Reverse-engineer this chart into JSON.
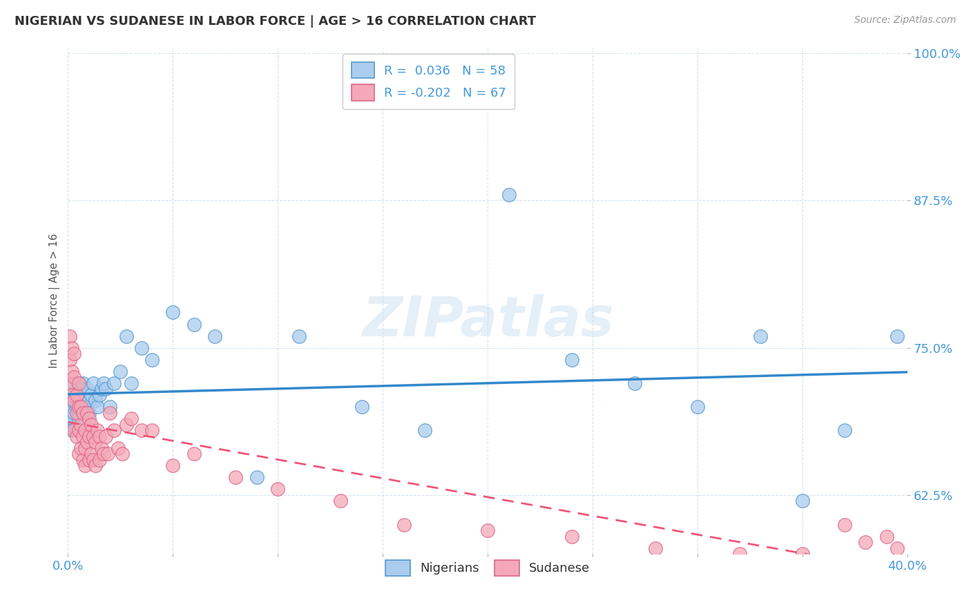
{
  "title": "NIGERIAN VS SUDANESE IN LABOR FORCE | AGE > 16 CORRELATION CHART",
  "source": "Source: ZipAtlas.com",
  "ylabel": "In Labor Force | Age > 16",
  "xlim": [
    0.0,
    0.4
  ],
  "ylim": [
    0.575,
    1.005
  ],
  "xticks": [
    0.0,
    0.05,
    0.1,
    0.15,
    0.2,
    0.25,
    0.3,
    0.35,
    0.4
  ],
  "xticklabels": [
    "0.0%",
    "",
    "",
    "",
    "",
    "",
    "",
    "",
    "40.0%"
  ],
  "yticks": [
    0.625,
    0.75,
    0.875,
    1.0
  ],
  "yticklabels": [
    "62.5%",
    "75.0%",
    "87.5%",
    "100.0%"
  ],
  "nigerian_R": 0.036,
  "nigerian_N": 58,
  "sudanese_R": -0.202,
  "sudanese_N": 67,
  "nigerian_color": "#aaccee",
  "sudanese_color": "#f4a8b8",
  "nigerian_edge_color": "#5599cc",
  "sudanese_edge_color": "#dd6688",
  "nigerian_line_color": "#3388cc",
  "sudanese_line_color": "#ee5577",
  "watermark": "ZIPatlas",
  "background_color": "#ffffff",
  "nigerian_scatter_x": [
    0.001,
    0.001,
    0.002,
    0.002,
    0.002,
    0.003,
    0.003,
    0.003,
    0.004,
    0.004,
    0.004,
    0.005,
    0.005,
    0.005,
    0.005,
    0.006,
    0.006,
    0.006,
    0.007,
    0.007,
    0.007,
    0.008,
    0.008,
    0.008,
    0.009,
    0.009,
    0.01,
    0.01,
    0.011,
    0.012,
    0.013,
    0.014,
    0.015,
    0.016,
    0.017,
    0.018,
    0.02,
    0.022,
    0.025,
    0.028,
    0.03,
    0.035,
    0.04,
    0.05,
    0.06,
    0.07,
    0.09,
    0.11,
    0.14,
    0.17,
    0.21,
    0.24,
    0.27,
    0.3,
    0.33,
    0.35,
    0.37,
    0.395
  ],
  "nigerian_scatter_y": [
    0.685,
    0.7,
    0.69,
    0.705,
    0.68,
    0.695,
    0.71,
    0.72,
    0.7,
    0.715,
    0.68,
    0.695,
    0.705,
    0.72,
    0.69,
    0.68,
    0.7,
    0.715,
    0.705,
    0.695,
    0.72,
    0.7,
    0.71,
    0.69,
    0.715,
    0.7,
    0.705,
    0.695,
    0.71,
    0.72,
    0.705,
    0.7,
    0.71,
    0.715,
    0.72,
    0.715,
    0.7,
    0.72,
    0.73,
    0.76,
    0.72,
    0.75,
    0.74,
    0.78,
    0.77,
    0.76,
    0.64,
    0.76,
    0.7,
    0.68,
    0.88,
    0.74,
    0.72,
    0.7,
    0.76,
    0.62,
    0.68,
    0.76
  ],
  "sudanese_scatter_x": [
    0.001,
    0.001,
    0.001,
    0.002,
    0.002,
    0.002,
    0.003,
    0.003,
    0.003,
    0.003,
    0.004,
    0.004,
    0.004,
    0.005,
    0.005,
    0.005,
    0.005,
    0.006,
    0.006,
    0.006,
    0.007,
    0.007,
    0.007,
    0.008,
    0.008,
    0.008,
    0.009,
    0.009,
    0.01,
    0.01,
    0.01,
    0.011,
    0.011,
    0.012,
    0.012,
    0.013,
    0.013,
    0.014,
    0.015,
    0.015,
    0.016,
    0.017,
    0.018,
    0.019,
    0.02,
    0.022,
    0.024,
    0.026,
    0.028,
    0.03,
    0.035,
    0.04,
    0.05,
    0.06,
    0.08,
    0.1,
    0.13,
    0.16,
    0.2,
    0.24,
    0.28,
    0.32,
    0.35,
    0.37,
    0.38,
    0.39,
    0.395
  ],
  "sudanese_scatter_y": [
    0.76,
    0.74,
    0.72,
    0.75,
    0.73,
    0.71,
    0.745,
    0.725,
    0.705,
    0.68,
    0.71,
    0.695,
    0.675,
    0.72,
    0.7,
    0.68,
    0.66,
    0.7,
    0.685,
    0.665,
    0.695,
    0.675,
    0.655,
    0.68,
    0.665,
    0.65,
    0.695,
    0.67,
    0.69,
    0.675,
    0.655,
    0.685,
    0.66,
    0.675,
    0.655,
    0.67,
    0.65,
    0.68,
    0.675,
    0.655,
    0.665,
    0.66,
    0.675,
    0.66,
    0.695,
    0.68,
    0.665,
    0.66,
    0.685,
    0.69,
    0.68,
    0.68,
    0.65,
    0.66,
    0.64,
    0.63,
    0.62,
    0.6,
    0.595,
    0.59,
    0.58,
    0.575,
    0.575,
    0.6,
    0.585,
    0.59,
    0.58
  ]
}
